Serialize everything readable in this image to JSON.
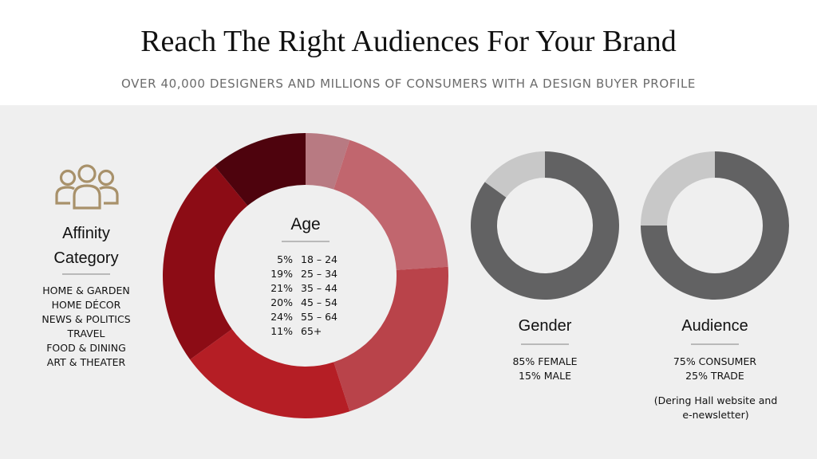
{
  "header": {
    "title": "Reach The Right Audiences For Your Brand",
    "subtitle": "OVER 40,000 DESIGNERS AND MILLIONS OF CONSUMERS WITH A DESIGN BUYER PROFILE"
  },
  "affinity": {
    "icon": "people-group-icon",
    "title_line1": "Affinity",
    "title_line2": "Category",
    "items": [
      "HOME & GARDEN",
      "HOME DÉCOR",
      "NEWS & POLITICS",
      "TRAVEL",
      "FOOD & DINING",
      "ART & THEATER"
    ]
  },
  "chart_data": [
    {
      "type": "pie",
      "style": "donut",
      "title": "Age",
      "categories": [
        "18 – 24",
        "25 – 34",
        "35 – 44",
        "45 – 54",
        "55 – 64",
        "65+"
      ],
      "values": [
        5,
        19,
        21,
        20,
        24,
        11
      ],
      "labels": [
        "5%",
        "19%",
        "21%",
        "20%",
        "24%",
        "11%"
      ],
      "colors": [
        "#b87a82",
        "#c1666e",
        "#b9434a",
        "#b51e25",
        "#8c0c15",
        "#4e030d"
      ]
    },
    {
      "type": "pie",
      "style": "donut",
      "title": "Gender",
      "categories": [
        "FEMALE",
        "MALE"
      ],
      "values": [
        85,
        15
      ],
      "lines": [
        "85% FEMALE",
        "15% MALE"
      ],
      "colors": [
        "#626263",
        "#c8c8c8"
      ]
    },
    {
      "type": "pie",
      "style": "donut",
      "title": "Audience",
      "categories": [
        "CONSUMER",
        "TRADE"
      ],
      "values": [
        75,
        25
      ],
      "lines": [
        "75% CONSUMER",
        "25% TRADE"
      ],
      "colors": [
        "#626263",
        "#c8c8c8"
      ],
      "note_line1": "(Dering Hall website and",
      "note_line2": "e-newsletter)"
    }
  ]
}
